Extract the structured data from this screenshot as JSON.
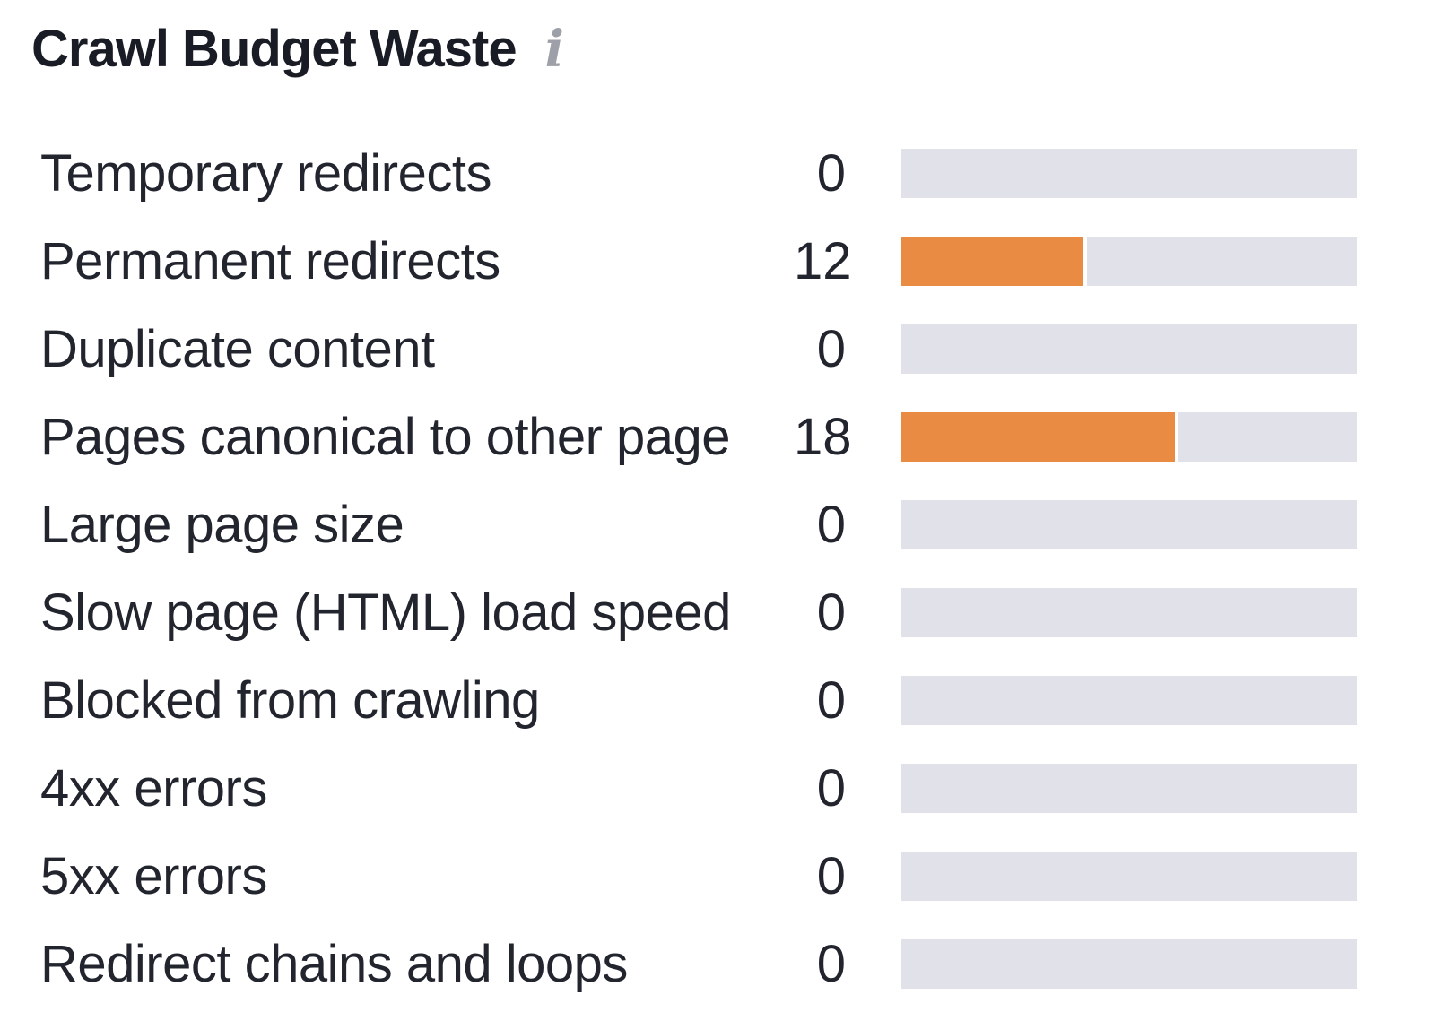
{
  "widget": {
    "title": "Crawl Budget Waste",
    "info_icon_glyph": "i"
  },
  "chart_data": {
    "type": "bar",
    "orientation": "horizontal",
    "title": "Crawl Budget Waste",
    "categories": [
      "Temporary redirects",
      "Permanent redirects",
      "Duplicate content",
      "Pages canonical to other page",
      "Large page size",
      "Slow page (HTML) load speed",
      "Blocked from crawling",
      "4xx errors",
      "5xx errors",
      "Redirect chains and loops"
    ],
    "values": [
      0,
      12,
      0,
      18,
      0,
      0,
      0,
      0,
      0,
      0
    ],
    "xlabel": "",
    "ylabel": "",
    "xlim": [
      0,
      30
    ],
    "grid": false,
    "legend": false,
    "value_labels_shown": true,
    "bar_color": "#ea8b43",
    "track_color": "#e0e1e9",
    "text_color": "#22242e"
  }
}
